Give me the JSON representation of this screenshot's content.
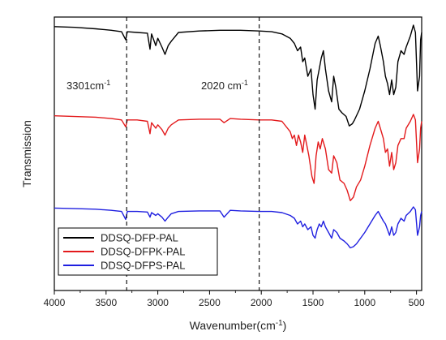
{
  "chart_data": {
    "type": "line",
    "xlabel": "Wavenumber(cm",
    "xlabel_sup": "-1",
    "xlabel_suffix": ")",
    "ylabel": "Transmission",
    "xlim": [
      4000,
      450
    ],
    "x_reversed": true,
    "y_ticks_shown": false,
    "x_ticks": [
      4000,
      3500,
      3000,
      2500,
      2000,
      1500,
      1000,
      500
    ],
    "x_tick_labels": [
      "4000",
      "3500",
      "3000",
      "2500",
      "2000",
      "1500",
      "1000",
      "500"
    ],
    "grid": false,
    "legend_position": "bottom-left",
    "annotations": [
      {
        "x": 3301,
        "text": "3301cm",
        "sup": "-1",
        "line": "dashed"
      },
      {
        "x": 2020,
        "text": "2020 cm",
        "sup": "-1",
        "line": "dashed"
      }
    ],
    "series": [
      {
        "name": "DDSQ-DFP-PAL",
        "color": "#000000",
        "offset": 2.0,
        "points": [
          [
            4000,
            0.02
          ],
          [
            3800,
            0.03
          ],
          [
            3600,
            0.05
          ],
          [
            3450,
            0.07
          ],
          [
            3350,
            0.09
          ],
          [
            3310,
            0.2
          ],
          [
            3295,
            0.09
          ],
          [
            3200,
            0.1
          ],
          [
            3100,
            0.11
          ],
          [
            3075,
            0.33
          ],
          [
            3060,
            0.12
          ],
          [
            3020,
            0.28
          ],
          [
            3000,
            0.18
          ],
          [
            2960,
            0.3
          ],
          [
            2930,
            0.4
          ],
          [
            2900,
            0.28
          ],
          [
            2870,
            0.22
          ],
          [
            2800,
            0.1
          ],
          [
            2600,
            0.08
          ],
          [
            2400,
            0.07
          ],
          [
            2200,
            0.07
          ],
          [
            2020,
            0.08
          ],
          [
            1900,
            0.09
          ],
          [
            1800,
            0.12
          ],
          [
            1720,
            0.18
          ],
          [
            1680,
            0.25
          ],
          [
            1650,
            0.35
          ],
          [
            1620,
            0.3
          ],
          [
            1600,
            0.5
          ],
          [
            1580,
            0.45
          ],
          [
            1550,
            0.7
          ],
          [
            1520,
            0.6
          ],
          [
            1500,
            0.95
          ],
          [
            1480,
            1.15
          ],
          [
            1460,
            0.75
          ],
          [
            1440,
            0.6
          ],
          [
            1420,
            0.45
          ],
          [
            1400,
            0.35
          ],
          [
            1380,
            0.6
          ],
          [
            1350,
            0.9
          ],
          [
            1320,
            1.05
          ],
          [
            1300,
            0.7
          ],
          [
            1280,
            0.85
          ],
          [
            1250,
            1.15
          ],
          [
            1220,
            1.2
          ],
          [
            1180,
            1.25
          ],
          [
            1150,
            1.38
          ],
          [
            1120,
            1.35
          ],
          [
            1100,
            1.3
          ],
          [
            1050,
            1.15
          ],
          [
            1000,
            0.9
          ],
          [
            950,
            0.6
          ],
          [
            900,
            0.25
          ],
          [
            870,
            0.15
          ],
          [
            850,
            0.28
          ],
          [
            820,
            0.5
          ],
          [
            800,
            0.7
          ],
          [
            780,
            0.8
          ],
          [
            760,
            0.95
          ],
          [
            740,
            0.75
          ],
          [
            720,
            0.95
          ],
          [
            700,
            0.85
          ],
          [
            680,
            0.5
          ],
          [
            650,
            0.35
          ],
          [
            620,
            0.4
          ],
          [
            600,
            0.3
          ],
          [
            560,
            0.15
          ],
          [
            530,
            0.0
          ],
          [
            510,
            0.1
          ],
          [
            490,
            0.9
          ],
          [
            470,
            0.7
          ],
          [
            460,
            0.2
          ],
          [
            450,
            0.1
          ]
        ]
      },
      {
        "name": "DDSQ-DFPK-PAL",
        "color": "#e31a1c",
        "offset": 1.0,
        "points": [
          [
            4000,
            0.02
          ],
          [
            3800,
            0.03
          ],
          [
            3600,
            0.04
          ],
          [
            3450,
            0.06
          ],
          [
            3350,
            0.08
          ],
          [
            3310,
            0.18
          ],
          [
            3295,
            0.08
          ],
          [
            3200,
            0.08
          ],
          [
            3100,
            0.1
          ],
          [
            3075,
            0.28
          ],
          [
            3060,
            0.12
          ],
          [
            3020,
            0.2
          ],
          [
            3000,
            0.15
          ],
          [
            2960,
            0.22
          ],
          [
            2930,
            0.3
          ],
          [
            2900,
            0.2
          ],
          [
            2870,
            0.15
          ],
          [
            2800,
            0.08
          ],
          [
            2600,
            0.07
          ],
          [
            2400,
            0.07
          ],
          [
            2360,
            0.12
          ],
          [
            2300,
            0.06
          ],
          [
            2200,
            0.07
          ],
          [
            2020,
            0.08
          ],
          [
            1900,
            0.08
          ],
          [
            1800,
            0.1
          ],
          [
            1720,
            0.25
          ],
          [
            1700,
            0.35
          ],
          [
            1680,
            0.3
          ],
          [
            1660,
            0.45
          ],
          [
            1640,
            0.3
          ],
          [
            1620,
            0.4
          ],
          [
            1600,
            0.55
          ],
          [
            1580,
            0.3
          ],
          [
            1560,
            0.45
          ],
          [
            1540,
            0.6
          ],
          [
            1510,
            0.9
          ],
          [
            1490,
            1.0
          ],
          [
            1470,
            0.6
          ],
          [
            1450,
            0.4
          ],
          [
            1430,
            0.5
          ],
          [
            1410,
            0.35
          ],
          [
            1380,
            0.5
          ],
          [
            1350,
            0.8
          ],
          [
            1320,
            0.85
          ],
          [
            1300,
            0.6
          ],
          [
            1270,
            0.7
          ],
          [
            1240,
            0.95
          ],
          [
            1200,
            1.0
          ],
          [
            1170,
            1.1
          ],
          [
            1140,
            1.25
          ],
          [
            1110,
            1.2
          ],
          [
            1080,
            1.05
          ],
          [
            1040,
            0.95
          ],
          [
            1000,
            0.75
          ],
          [
            950,
            0.45
          ],
          [
            900,
            0.2
          ],
          [
            870,
            0.1
          ],
          [
            850,
            0.2
          ],
          [
            820,
            0.35
          ],
          [
            800,
            0.55
          ],
          [
            780,
            0.5
          ],
          [
            760,
            0.75
          ],
          [
            740,
            0.55
          ],
          [
            720,
            0.8
          ],
          [
            700,
            0.7
          ],
          [
            680,
            0.45
          ],
          [
            650,
            0.35
          ],
          [
            620,
            0.35
          ],
          [
            600,
            0.2
          ],
          [
            560,
            0.1
          ],
          [
            530,
            0.0
          ],
          [
            510,
            0.08
          ],
          [
            490,
            0.7
          ],
          [
            470,
            0.5
          ],
          [
            460,
            0.2
          ],
          [
            450,
            0.1
          ]
        ]
      },
      {
        "name": "DDSQ-DFPS-PAL",
        "color": "#1f1fe0",
        "offset": 0.0,
        "points": [
          [
            4000,
            0.02
          ],
          [
            3800,
            0.03
          ],
          [
            3600,
            0.04
          ],
          [
            3450,
            0.06
          ],
          [
            3350,
            0.08
          ],
          [
            3310,
            0.22
          ],
          [
            3295,
            0.08
          ],
          [
            3200,
            0.08
          ],
          [
            3100,
            0.09
          ],
          [
            3075,
            0.18
          ],
          [
            3060,
            0.1
          ],
          [
            3020,
            0.15
          ],
          [
            3000,
            0.12
          ],
          [
            2960,
            0.18
          ],
          [
            2930,
            0.25
          ],
          [
            2900,
            0.18
          ],
          [
            2870,
            0.12
          ],
          [
            2800,
            0.08
          ],
          [
            2600,
            0.07
          ],
          [
            2400,
            0.07
          ],
          [
            2360,
            0.18
          ],
          [
            2300,
            0.06
          ],
          [
            2200,
            0.07
          ],
          [
            2020,
            0.08
          ],
          [
            1900,
            0.08
          ],
          [
            1800,
            0.1
          ],
          [
            1720,
            0.15
          ],
          [
            1680,
            0.2
          ],
          [
            1650,
            0.3
          ],
          [
            1620,
            0.25
          ],
          [
            1600,
            0.35
          ],
          [
            1580,
            0.3
          ],
          [
            1550,
            0.4
          ],
          [
            1520,
            0.35
          ],
          [
            1500,
            0.5
          ],
          [
            1480,
            0.55
          ],
          [
            1460,
            0.4
          ],
          [
            1440,
            0.3
          ],
          [
            1420,
            0.35
          ],
          [
            1400,
            0.25
          ],
          [
            1380,
            0.35
          ],
          [
            1350,
            0.45
          ],
          [
            1320,
            0.55
          ],
          [
            1300,
            0.4
          ],
          [
            1270,
            0.45
          ],
          [
            1240,
            0.55
          ],
          [
            1200,
            0.6
          ],
          [
            1170,
            0.65
          ],
          [
            1140,
            0.72
          ],
          [
            1110,
            0.7
          ],
          [
            1080,
            0.65
          ],
          [
            1040,
            0.55
          ],
          [
            1000,
            0.45
          ],
          [
            950,
            0.3
          ],
          [
            900,
            0.15
          ],
          [
            870,
            0.08
          ],
          [
            850,
            0.15
          ],
          [
            820,
            0.25
          ],
          [
            800,
            0.3
          ],
          [
            780,
            0.4
          ],
          [
            760,
            0.5
          ],
          [
            740,
            0.35
          ],
          [
            720,
            0.5
          ],
          [
            700,
            0.45
          ],
          [
            680,
            0.3
          ],
          [
            650,
            0.2
          ],
          [
            620,
            0.25
          ],
          [
            600,
            0.15
          ],
          [
            560,
            0.08
          ],
          [
            530,
            0.0
          ],
          [
            510,
            0.05
          ],
          [
            490,
            0.5
          ],
          [
            470,
            0.35
          ],
          [
            460,
            0.15
          ],
          [
            450,
            0.08
          ]
        ]
      }
    ]
  }
}
